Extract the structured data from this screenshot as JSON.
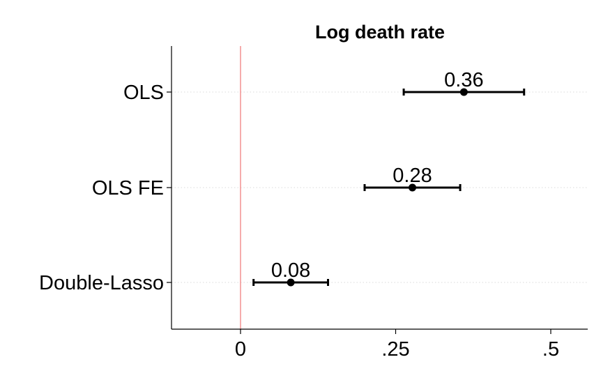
{
  "chart_data": {
    "type": "scatter",
    "title": "Log death rate",
    "xlabel": "",
    "ylabel": "",
    "xlim": [
      -0.11,
      0.56
    ],
    "xticks": [
      {
        "value": 0,
        "label": "0"
      },
      {
        "value": 0.25,
        "label": ".25"
      },
      {
        "value": 0.5,
        "label": ".5"
      }
    ],
    "reference_line": {
      "x": 0,
      "color": "#f08080"
    },
    "grid": true,
    "categories": [
      "OLS",
      "OLS FE",
      "Double-Lasso"
    ],
    "points": [
      {
        "label": "OLS",
        "estimate": 0.36,
        "ci_low": 0.263,
        "ci_high": 0.457,
        "value_label": "0.36"
      },
      {
        "label": "OLS FE",
        "estimate": 0.277,
        "ci_low": 0.2,
        "ci_high": 0.354,
        "value_label": "0.28"
      },
      {
        "label": "Double-Lasso",
        "estimate": 0.081,
        "ci_low": 0.021,
        "ci_high": 0.141,
        "value_label": "0.08"
      }
    ]
  }
}
